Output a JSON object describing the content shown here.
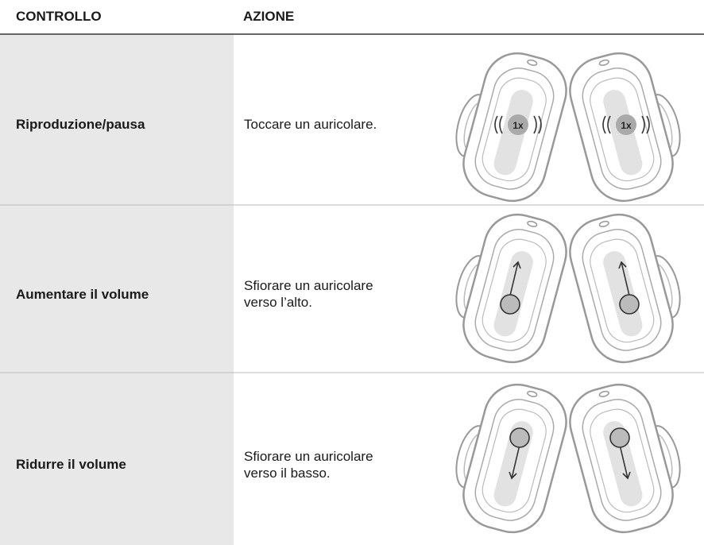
{
  "table": {
    "headers": [
      "CONTROLLO",
      "AZIONE"
    ],
    "rows": [
      {
        "control": "Riproduzione/pausa",
        "action": [
          "Toccare un auricolare."
        ],
        "tap_label": "1x"
      },
      {
        "control": "Aumentare il volume",
        "action": [
          "Sfiorare un auricolare",
          "verso l’alto."
        ]
      },
      {
        "control": "Ridurre il volume",
        "action": [
          "Sfiorare un auricolare",
          "verso il basso."
        ]
      }
    ]
  }
}
